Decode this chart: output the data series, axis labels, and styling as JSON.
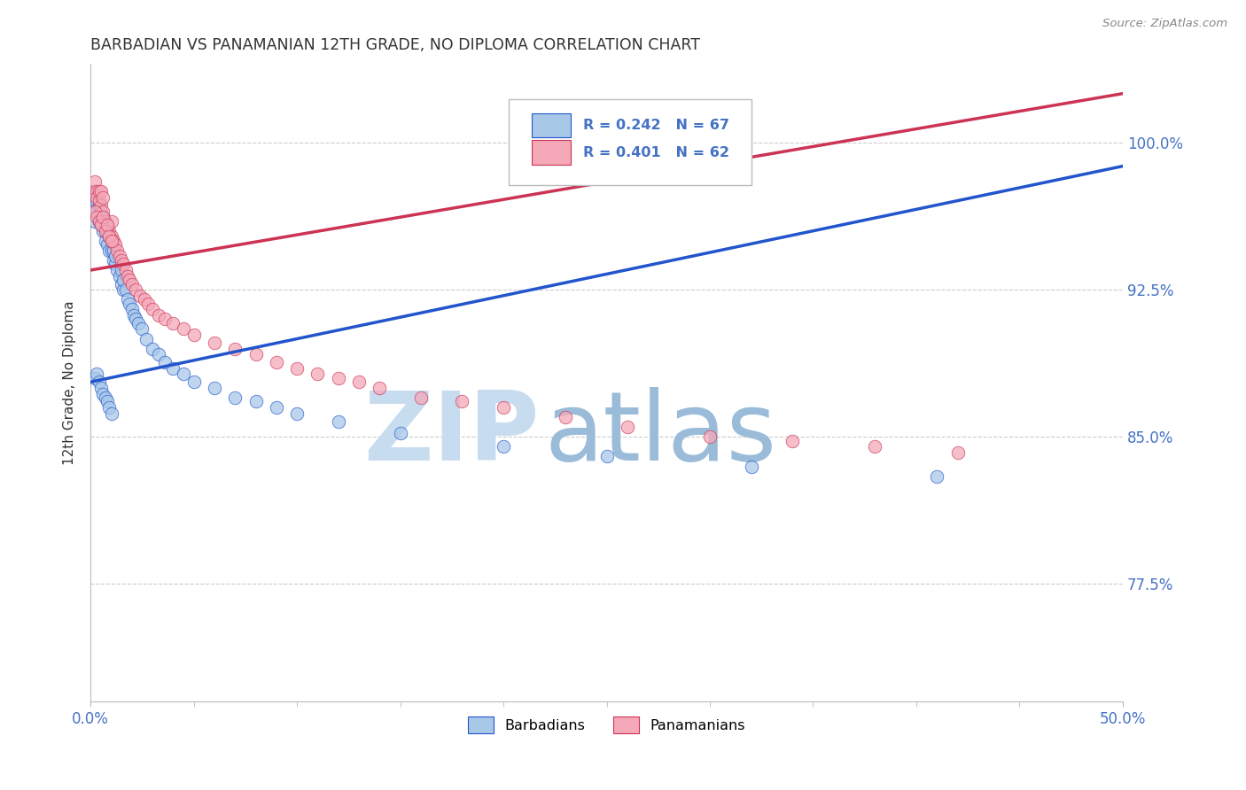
{
  "title": "BARBADIAN VS PANAMANIAN 12TH GRADE, NO DIPLOMA CORRELATION CHART",
  "source": "Source: ZipAtlas.com",
  "ylabel": "12th Grade, No Diploma",
  "y_tick_labels": [
    "77.5%",
    "85.0%",
    "92.5%",
    "100.0%"
  ],
  "y_tick_values": [
    0.775,
    0.85,
    0.925,
    1.0
  ],
  "x_min": 0.0,
  "x_max": 0.5,
  "y_min": 0.715,
  "y_max": 1.04,
  "legend_r_blue": "R = 0.242",
  "legend_n_blue": "N = 67",
  "legend_r_pink": "R = 0.401",
  "legend_n_pink": "N = 62",
  "legend_label_blue": "Barbadians",
  "legend_label_pink": "Panamanians",
  "blue_color": "#A8C8E8",
  "pink_color": "#F4A8B8",
  "trend_blue": "#2255CC",
  "trend_pink": "#CC3355",
  "title_color": "#333333",
  "source_color": "#888888",
  "axis_label_color": "#4472C4",
  "watermark_zip_color": "#C8DCF0",
  "watermark_atlas_color": "#9ABCD8",
  "blue_trend_x0": 0.0,
  "blue_trend_y0": 0.878,
  "blue_trend_x1": 0.5,
  "blue_trend_y1": 0.988,
  "pink_trend_x0": 0.0,
  "pink_trend_y0": 0.935,
  "pink_trend_x1": 0.5,
  "pink_trend_y1": 1.025,
  "blue_scatter_x": [
    0.001,
    0.002,
    0.002,
    0.003,
    0.003,
    0.004,
    0.004,
    0.005,
    0.005,
    0.005,
    0.006,
    0.006,
    0.006,
    0.007,
    0.007,
    0.007,
    0.008,
    0.008,
    0.009,
    0.009,
    0.01,
    0.01,
    0.011,
    0.011,
    0.012,
    0.012,
    0.013,
    0.014,
    0.015,
    0.015,
    0.016,
    0.016,
    0.017,
    0.018,
    0.019,
    0.02,
    0.021,
    0.022,
    0.023,
    0.025,
    0.027,
    0.03,
    0.033,
    0.036,
    0.04,
    0.045,
    0.05,
    0.06,
    0.07,
    0.08,
    0.09,
    0.1,
    0.12,
    0.15,
    0.2,
    0.25,
    0.32,
    0.41,
    0.002,
    0.003,
    0.004,
    0.005,
    0.006,
    0.007,
    0.008,
    0.009,
    0.01
  ],
  "blue_scatter_y": [
    0.975,
    0.97,
    0.96,
    0.97,
    0.965,
    0.968,
    0.96,
    0.965,
    0.958,
    0.962,
    0.96,
    0.955,
    0.962,
    0.95,
    0.955,
    0.96,
    0.948,
    0.955,
    0.945,
    0.952,
    0.945,
    0.95,
    0.94,
    0.945,
    0.938,
    0.942,
    0.935,
    0.932,
    0.928,
    0.935,
    0.925,
    0.93,
    0.925,
    0.92,
    0.918,
    0.915,
    0.912,
    0.91,
    0.908,
    0.905,
    0.9,
    0.895,
    0.892,
    0.888,
    0.885,
    0.882,
    0.878,
    0.875,
    0.87,
    0.868,
    0.865,
    0.862,
    0.858,
    0.852,
    0.845,
    0.84,
    0.835,
    0.83,
    0.88,
    0.882,
    0.878,
    0.875,
    0.872,
    0.87,
    0.868,
    0.865,
    0.862
  ],
  "pink_scatter_x": [
    0.001,
    0.002,
    0.003,
    0.003,
    0.004,
    0.004,
    0.005,
    0.005,
    0.006,
    0.006,
    0.007,
    0.008,
    0.009,
    0.01,
    0.01,
    0.011,
    0.012,
    0.013,
    0.014,
    0.015,
    0.016,
    0.017,
    0.018,
    0.019,
    0.02,
    0.022,
    0.024,
    0.026,
    0.028,
    0.03,
    0.033,
    0.036,
    0.04,
    0.045,
    0.05,
    0.06,
    0.07,
    0.08,
    0.09,
    0.1,
    0.11,
    0.12,
    0.13,
    0.14,
    0.16,
    0.18,
    0.2,
    0.23,
    0.26,
    0.3,
    0.34,
    0.38,
    0.42,
    0.002,
    0.003,
    0.004,
    0.005,
    0.006,
    0.007,
    0.008,
    0.009,
    0.01
  ],
  "pink_scatter_y": [
    0.975,
    0.98,
    0.975,
    0.972,
    0.975,
    0.97,
    0.975,
    0.968,
    0.972,
    0.965,
    0.96,
    0.958,
    0.955,
    0.96,
    0.952,
    0.95,
    0.948,
    0.945,
    0.942,
    0.94,
    0.938,
    0.935,
    0.932,
    0.93,
    0.928,
    0.925,
    0.922,
    0.92,
    0.918,
    0.915,
    0.912,
    0.91,
    0.908,
    0.905,
    0.902,
    0.898,
    0.895,
    0.892,
    0.888,
    0.885,
    0.882,
    0.88,
    0.878,
    0.875,
    0.87,
    0.868,
    0.865,
    0.86,
    0.855,
    0.85,
    0.848,
    0.845,
    0.842,
    0.965,
    0.962,
    0.96,
    0.958,
    0.962,
    0.955,
    0.958,
    0.952,
    0.95
  ]
}
